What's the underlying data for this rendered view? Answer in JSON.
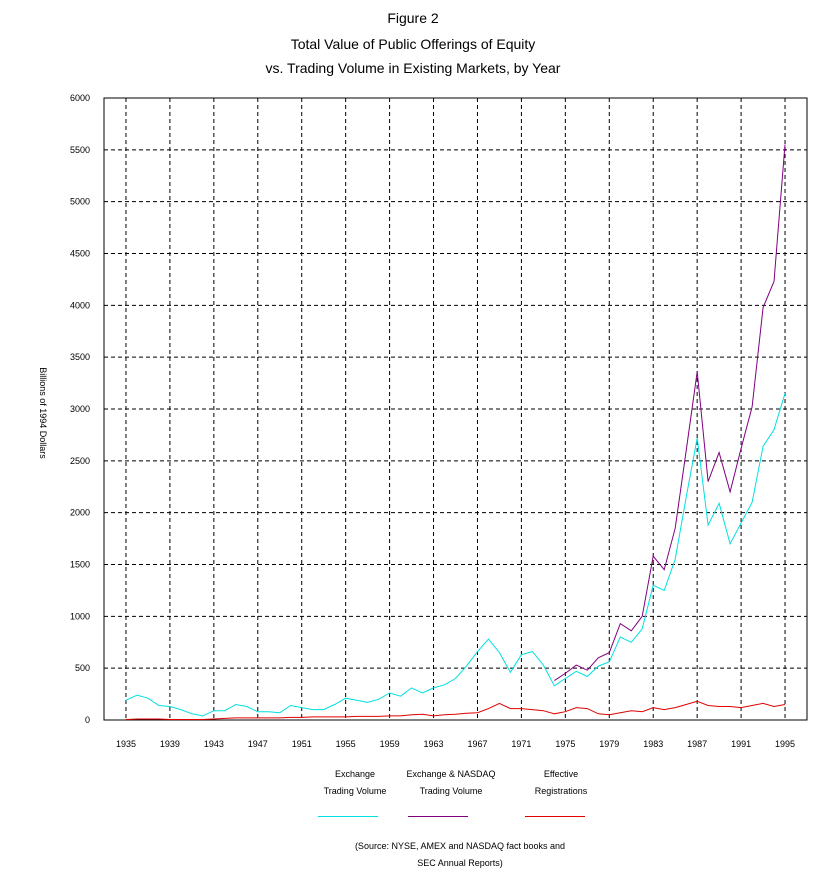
{
  "titles": {
    "figure": "Figure 2",
    "line1": "Total Value of Public Offerings of Equity",
    "line2": "vs. Trading Volume in Existing Markets, by Year"
  },
  "source": {
    "line1": "(Source: NYSE, AMEX and NASDAQ fact books and",
    "line2": "SEC Annual Reports)"
  },
  "legend": [
    {
      "line1": "Exchange",
      "line2": "Trading Volume"
    },
    {
      "line1": "Exchange & NASDAQ",
      "line2": "Trading Volume"
    },
    {
      "line1": "Effective",
      "line2": "Registrations"
    }
  ],
  "chart_data": {
    "type": "line",
    "ylabel": "Billions of 1994 Dollars",
    "xlabel": "",
    "ylim": [
      0,
      6000
    ],
    "yticks": [
      0,
      500,
      1000,
      1500,
      2000,
      2500,
      3000,
      3500,
      4000,
      4500,
      5000,
      5500,
      6000
    ],
    "xlim": [
      1933,
      1997
    ],
    "xticks": [
      1935,
      1939,
      1943,
      1947,
      1951,
      1955,
      1959,
      1963,
      1967,
      1971,
      1975,
      1979,
      1983,
      1987,
      1991,
      1995
    ],
    "grid": true,
    "legend_position": "bottom",
    "series": [
      {
        "name": "Exchange Trading Volume",
        "color": "#00e0e0",
        "x": [
          1935,
          1936,
          1937,
          1938,
          1939,
          1940,
          1941,
          1942,
          1943,
          1944,
          1945,
          1946,
          1947,
          1948,
          1949,
          1950,
          1951,
          1952,
          1953,
          1954,
          1955,
          1956,
          1957,
          1958,
          1959,
          1960,
          1961,
          1962,
          1963,
          1964,
          1965,
          1966,
          1967,
          1968,
          1969,
          1970,
          1971,
          1972,
          1973,
          1974,
          1975,
          1976,
          1977,
          1978,
          1979,
          1980,
          1981,
          1982,
          1983,
          1984,
          1985,
          1986,
          1987,
          1988,
          1989,
          1990,
          1991,
          1992,
          1993,
          1994,
          1995
        ],
        "values": [
          190,
          240,
          210,
          140,
          130,
          100,
          60,
          40,
          90,
          90,
          150,
          130,
          80,
          80,
          70,
          140,
          120,
          100,
          100,
          150,
          210,
          190,
          170,
          200,
          260,
          230,
          310,
          260,
          310,
          340,
          400,
          520,
          660,
          780,
          650,
          460,
          630,
          660,
          530,
          330,
          400,
          470,
          420,
          520,
          560,
          800,
          750,
          880,
          1300,
          1250,
          1550,
          2150,
          2720,
          1880,
          2090,
          1700,
          1900,
          2100,
          2640,
          2800,
          3150
        ]
      },
      {
        "name": "Exchange & NASDAQ Trading Volume",
        "color": "#800080",
        "x": [
          1974,
          1975,
          1976,
          1977,
          1978,
          1979,
          1980,
          1981,
          1982,
          1983,
          1984,
          1985,
          1986,
          1987,
          1988,
          1989,
          1990,
          1991,
          1992,
          1993,
          1994,
          1995
        ],
        "values": [
          380,
          450,
          530,
          480,
          600,
          650,
          930,
          860,
          1000,
          1580,
          1450,
          1850,
          2600,
          3360,
          2300,
          2580,
          2200,
          2620,
          3020,
          3980,
          4230,
          5550
        ]
      },
      {
        "name": "Effective Registrations",
        "color": "#e00000",
        "x": [
          1935,
          1936,
          1937,
          1938,
          1939,
          1940,
          1941,
          1942,
          1943,
          1944,
          1945,
          1946,
          1947,
          1948,
          1949,
          1950,
          1951,
          1952,
          1953,
          1954,
          1955,
          1956,
          1957,
          1958,
          1959,
          1960,
          1961,
          1962,
          1963,
          1964,
          1965,
          1966,
          1967,
          1968,
          1969,
          1970,
          1971,
          1972,
          1973,
          1974,
          1975,
          1976,
          1977,
          1978,
          1979,
          1980,
          1981,
          1982,
          1983,
          1984,
          1985,
          1986,
          1987,
          1988,
          1989,
          1990,
          1991,
          1992,
          1993,
          1994,
          1995
        ],
        "values": [
          5,
          10,
          10,
          10,
          5,
          5,
          5,
          5,
          10,
          15,
          20,
          20,
          20,
          20,
          20,
          25,
          25,
          30,
          30,
          30,
          30,
          35,
          35,
          35,
          40,
          40,
          50,
          55,
          40,
          50,
          55,
          65,
          70,
          110,
          160,
          110,
          110,
          100,
          90,
          60,
          80,
          120,
          110,
          60,
          50,
          70,
          90,
          80,
          120,
          100,
          120,
          150,
          180,
          140,
          130,
          130,
          120,
          140,
          160,
          130,
          150
        ]
      }
    ]
  }
}
